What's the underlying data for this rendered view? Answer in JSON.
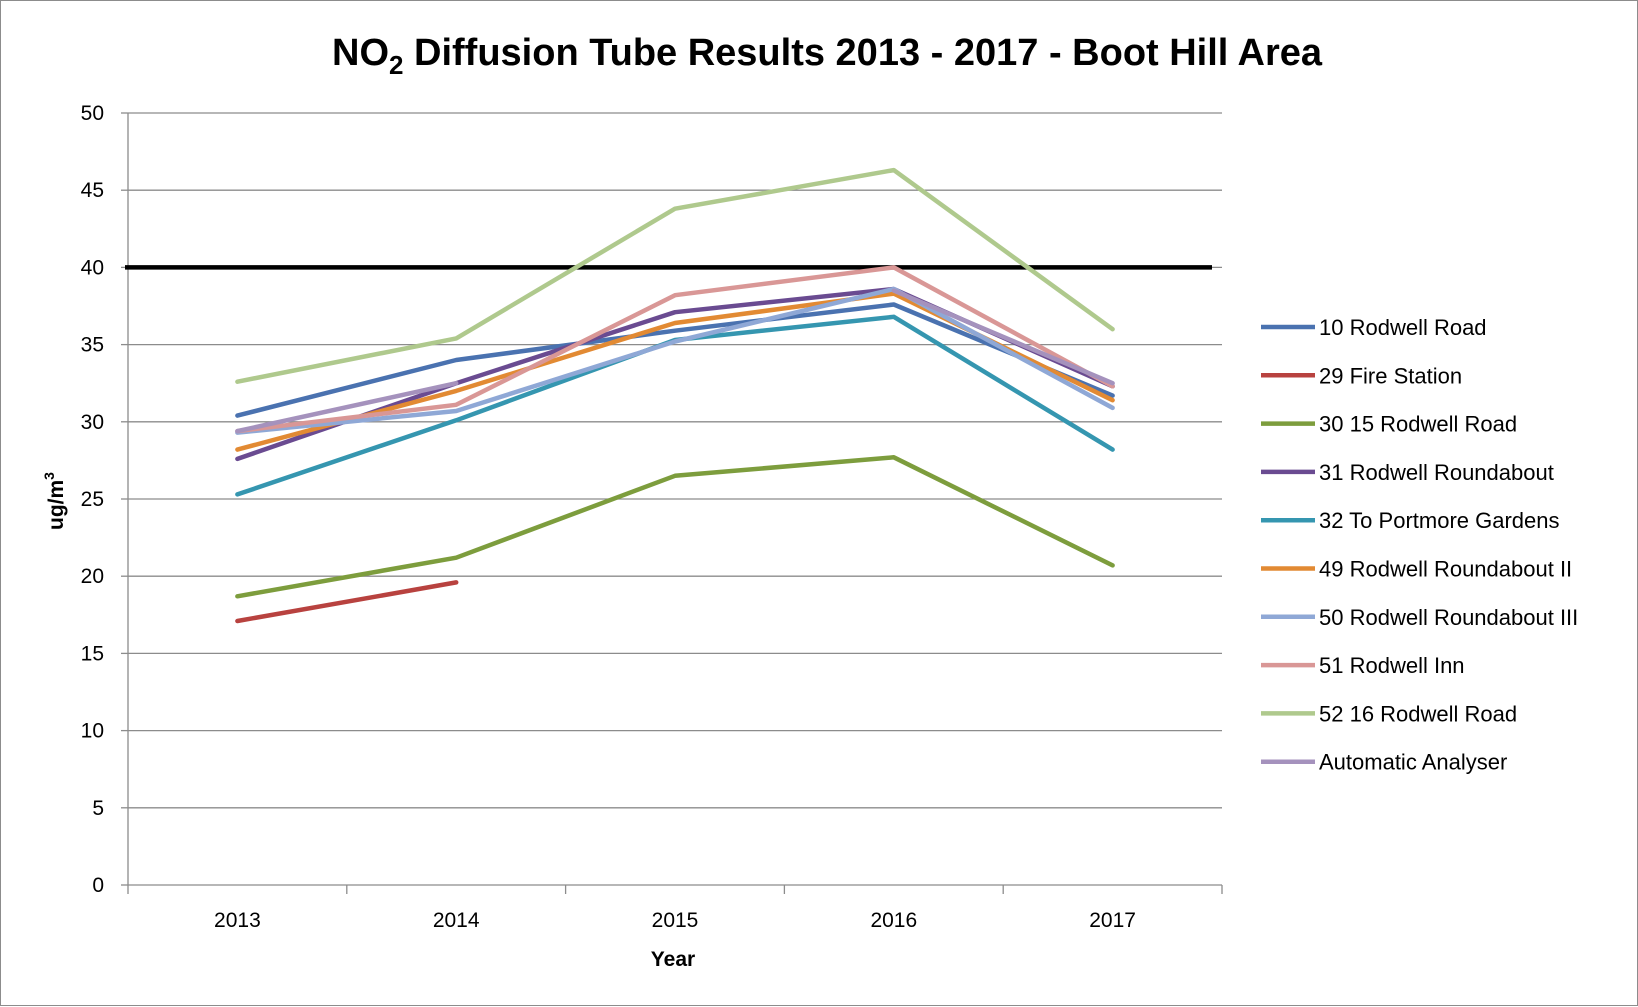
{
  "chart_data": {
    "type": "line",
    "title_main": "NO",
    "title_sub": "2",
    "title_rest": " Diffusion Tube Results 2013 - 2017 - Boot Hill Area",
    "xlabel": "Year",
    "ylabel_main": "ug/m",
    "ylabel_sup": "3",
    "categories": [
      "2013",
      "2014",
      "2015",
      "2016",
      "2017"
    ],
    "ylim": [
      0,
      50
    ],
    "ytick_step": 5,
    "yticks": [
      "0",
      "5",
      "10",
      "15",
      "20",
      "25",
      "30",
      "35",
      "40",
      "45",
      "50"
    ],
    "grid": true,
    "legend_position": "right",
    "reference_line": {
      "value": 40,
      "color": "#000000"
    },
    "series": [
      {
        "name": "10  Rodwell Road",
        "color": "#4a72b0",
        "values": [
          30.4,
          34.0,
          35.9,
          37.6,
          31.7
        ]
      },
      {
        "name": "29  Fire Station",
        "color": "#b8423f",
        "values": [
          17.1,
          19.6,
          null,
          null,
          null
        ]
      },
      {
        "name": "30  15 Rodwell Road",
        "color": "#7d9d3d",
        "values": [
          18.7,
          21.2,
          26.5,
          27.7,
          20.7
        ]
      },
      {
        "name": "31 Rodwell Roundabout",
        "color": "#6a4b91",
        "values": [
          27.6,
          32.5,
          37.1,
          38.6,
          32.3
        ]
      },
      {
        "name": "32  To Portmore Gardens",
        "color": "#3596b0",
        "values": [
          25.3,
          30.1,
          35.3,
          36.8,
          28.2
        ]
      },
      {
        "name": "49  Rodwell Roundabout II",
        "color": "#e28a33",
        "values": [
          28.2,
          32.0,
          36.4,
          38.3,
          31.4
        ]
      },
      {
        "name": "50  Rodwell Roundabout III",
        "color": "#8fa8d6",
        "values": [
          29.3,
          30.7,
          35.2,
          38.6,
          30.9
        ]
      },
      {
        "name": "51  Rodwell Inn",
        "color": "#d99796",
        "values": [
          29.4,
          31.1,
          38.2,
          40.0,
          32.3
        ]
      },
      {
        "name": "52  16 Rodwell Road",
        "color": "#afc98d",
        "values": [
          32.6,
          35.4,
          43.8,
          46.3,
          36.0
        ]
      },
      {
        "name": "Automatic Analyser",
        "color": "#a592bd",
        "values": [
          29.4,
          32.5,
          null,
          38.5,
          32.5
        ]
      }
    ]
  }
}
